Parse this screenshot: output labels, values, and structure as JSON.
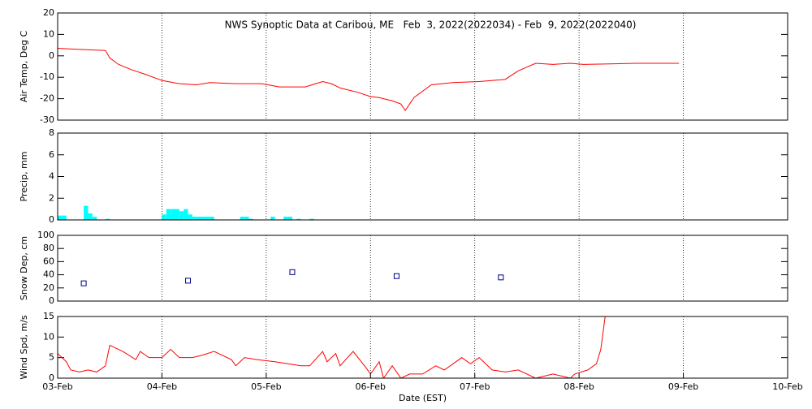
{
  "chart_data": [
    {
      "type": "line",
      "title": "NWS Synoptic Data at Caribou, ME   Feb  3, 2022(2022034) - Feb  9, 2022(2022040)",
      "ylabel": "Air Temp, Deg C",
      "ylim": [
        -30,
        20
      ],
      "yticks": [
        -30,
        -20,
        -10,
        0,
        10,
        20
      ],
      "color": "#ff0000",
      "x": [
        "2022-02-03T00:00",
        "2022-02-03T05:00",
        "2022-02-03T11:00",
        "2022-02-03T12:00",
        "2022-02-03T14:00",
        "2022-02-03T17:00",
        "2022-02-03T20:00",
        "2022-02-04T00:00",
        "2022-02-04T04:00",
        "2022-02-04T08:00",
        "2022-02-04T11:00",
        "2022-02-04T17:00",
        "2022-02-04T23:00",
        "2022-02-05T03:00",
        "2022-02-05T09:00",
        "2022-02-05T13:00",
        "2022-02-05T15:00",
        "2022-02-05T17:00",
        "2022-02-05T21:00",
        "2022-02-06T00:00",
        "2022-02-06T02:00",
        "2022-02-06T03:00",
        "2022-02-06T05:00",
        "2022-02-06T07:00",
        "2022-02-06T08:00",
        "2022-02-06T10:00",
        "2022-02-06T14:00",
        "2022-02-06T19:00",
        "2022-02-07T01:00",
        "2022-02-07T07:00",
        "2022-02-07T10:00",
        "2022-02-07T14:00",
        "2022-02-07T18:00",
        "2022-02-07T22:00",
        "2022-02-08T01:00",
        "2022-02-08T13:00",
        "2022-02-08T23:00"
      ],
      "values": [
        3.5,
        3,
        2.5,
        -1,
        -4,
        -6.5,
        -8.5,
        -11.5,
        -13,
        -13.5,
        -12.5,
        -13,
        -13,
        -14.5,
        -14.5,
        -12,
        -13,
        -15,
        -17,
        -19,
        -19.5,
        -20,
        -21,
        -22.5,
        -25.5,
        -19.5,
        -13.5,
        -12.5,
        -12,
        -11,
        -7,
        -3.5,
        -4,
        -3.5,
        -4,
        -3.5,
        -3.5
      ]
    },
    {
      "type": "bar",
      "ylabel": "Precip, mm",
      "ylim": [
        0,
        8
      ],
      "yticks": [
        0,
        2,
        4,
        6,
        8
      ],
      "color": "#00ffff",
      "x": [
        "2022-02-03T00:00",
        "2022-02-03T01:00",
        "2022-02-03T06:00",
        "2022-02-03T07:00",
        "2022-02-03T08:00",
        "2022-02-03T11:00",
        "2022-02-04T00:00",
        "2022-02-04T01:00",
        "2022-02-04T02:00",
        "2022-02-04T03:00",
        "2022-02-04T04:00",
        "2022-02-04T05:00",
        "2022-02-04T06:00",
        "2022-02-04T07:00",
        "2022-02-04T08:00",
        "2022-02-04T09:00",
        "2022-02-04T10:00",
        "2022-02-04T11:00",
        "2022-02-04T18:00",
        "2022-02-04T19:00",
        "2022-02-04T20:00",
        "2022-02-05T01:00",
        "2022-02-05T04:00",
        "2022-02-05T05:00",
        "2022-02-05T07:00",
        "2022-02-05T10:00"
      ],
      "values": [
        0.4,
        0.4,
        1.3,
        0.6,
        0.3,
        0.1,
        0.5,
        1.0,
        1.0,
        1.0,
        0.8,
        1.0,
        0.5,
        0.3,
        0.3,
        0.3,
        0.3,
        0.3,
        0.3,
        0.3,
        0.1,
        0.3,
        0.3,
        0.3,
        0.1,
        0.1
      ]
    },
    {
      "type": "scatter",
      "ylabel": "Snow Dep, cm",
      "ylim": [
        0,
        100
      ],
      "yticks": [
        0,
        20,
        40,
        60,
        80,
        100
      ],
      "color": "#00008b",
      "x": [
        "2022-02-03T06:00",
        "2022-02-04T06:00",
        "2022-02-05T06:00",
        "2022-02-06T06:00",
        "2022-02-07T06:00"
      ],
      "values": [
        27,
        31,
        44,
        38,
        36
      ]
    },
    {
      "type": "line",
      "ylabel": "Wind Spd, m/s",
      "xlabel": "Date (EST)",
      "ylim": [
        0,
        15
      ],
      "yticks": [
        0,
        5,
        10,
        15
      ],
      "xlim": [
        "2022-02-03T00:00",
        "2022-02-10T00:00"
      ],
      "xticks": [
        {
          "value": "2022-02-03T00:00",
          "label": "03-Feb"
        },
        {
          "value": "2022-02-04T00:00",
          "label": "04-Feb"
        },
        {
          "value": "2022-02-05T00:00",
          "label": "05-Feb"
        },
        {
          "value": "2022-02-06T00:00",
          "label": "06-Feb"
        },
        {
          "value": "2022-02-07T00:00",
          "label": "07-Feb"
        },
        {
          "value": "2022-02-08T00:00",
          "label": "08-Feb"
        },
        {
          "value": "2022-02-09T00:00",
          "label": "09-Feb"
        },
        {
          "value": "2022-02-10T00:00",
          "label": "10-Feb"
        }
      ],
      "grid": true,
      "color": "#ff0000",
      "x": [
        "2022-02-03T00:00",
        "2022-02-03T02:00",
        "2022-02-03T03:00",
        "2022-02-03T05:00",
        "2022-02-03T07:00",
        "2022-02-03T09:00",
        "2022-02-03T11:00",
        "2022-02-03T12:00",
        "2022-02-03T15:00",
        "2022-02-03T18:00",
        "2022-02-03T19:00",
        "2022-02-03T21:00",
        "2022-02-04T00:00",
        "2022-02-04T02:00",
        "2022-02-04T04:00",
        "2022-02-04T07:00",
        "2022-02-04T09:00",
        "2022-02-04T12:00",
        "2022-02-04T16:00",
        "2022-02-04T17:00",
        "2022-02-04T19:00",
        "2022-02-04T22:00",
        "2022-02-05T02:00",
        "2022-02-05T05:00",
        "2022-02-05T08:00",
        "2022-02-05T10:00",
        "2022-02-05T13:00",
        "2022-02-05T14:00",
        "2022-02-05T16:00",
        "2022-02-05T17:00",
        "2022-02-05T20:00",
        "2022-02-05T23:00",
        "2022-02-06T00:00",
        "2022-02-06T02:00",
        "2022-02-06T03:00",
        "2022-02-06T05:00",
        "2022-02-06T07:00",
        "2022-02-06T09:00",
        "2022-02-06T12:00",
        "2022-02-06T15:00",
        "2022-02-06T17:00",
        "2022-02-06T21:00",
        "2022-02-06T23:00",
        "2022-02-07T01:00",
        "2022-02-07T04:00",
        "2022-02-07T07:00",
        "2022-02-07T10:00",
        "2022-02-07T14:00",
        "2022-02-07T18:00",
        "2022-02-07T22:00",
        "2022-02-07T23:00",
        "2022-02-08T02:00",
        "2022-02-08T04:00",
        "2022-02-08T05:00",
        "2022-02-08T06:00"
      ],
      "values": [
        6,
        4,
        2,
        1.5,
        2,
        1.5,
        3,
        8,
        6.5,
        4.5,
        6.5,
        5,
        5,
        7,
        5,
        5,
        5.5,
        6.5,
        4.5,
        3,
        5,
        4.5,
        4,
        3.5,
        3,
        3,
        6.5,
        4,
        6,
        3,
        6.5,
        2.5,
        1,
        4,
        0,
        3,
        0,
        1,
        1,
        3,
        2,
        5,
        3.5,
        5,
        2,
        1.5,
        2,
        0,
        1,
        0,
        1,
        2,
        3.5,
        7,
        15
      ]
    }
  ]
}
